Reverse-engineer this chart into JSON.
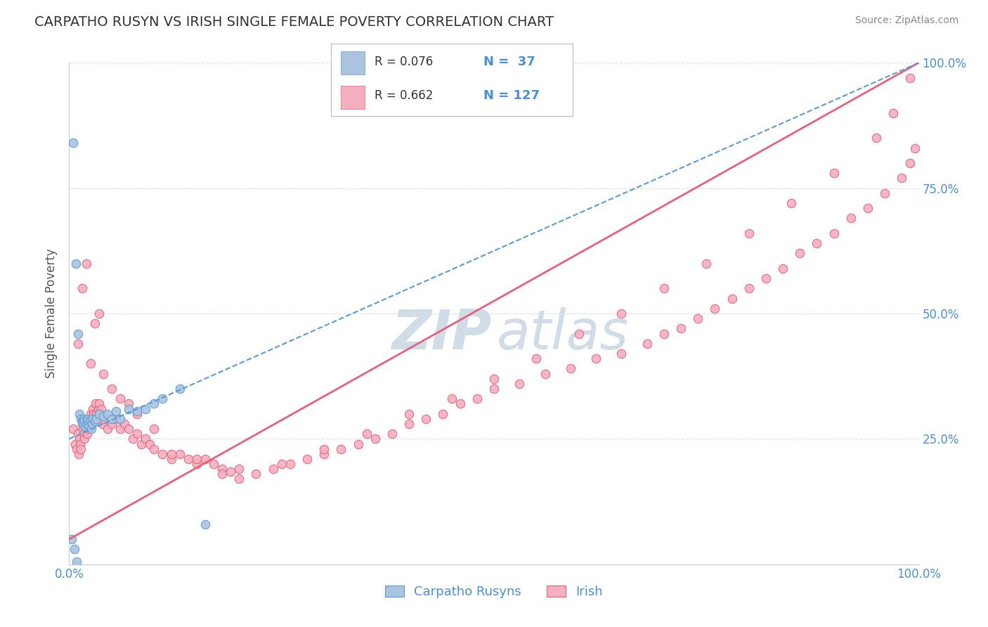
{
  "title": "CARPATHO RUSYN VS IRISH SINGLE FEMALE POVERTY CORRELATION CHART",
  "source": "Source: ZipAtlas.com",
  "ylabel": "Single Female Poverty",
  "carpatho_color": "#aac4e0",
  "carpatho_edge_color": "#5b9bd5",
  "irish_color": "#f4afc0",
  "irish_edge_color": "#e8607a",
  "carpatho_trend_color": "#5b9bd5",
  "irish_trend_color": "#e8607a",
  "watermark_color": "#d0dde8",
  "background_color": "#ffffff",
  "title_color": "#333333",
  "axis_tick_color": "#4a90d9",
  "ylabel_color": "#555555",
  "source_color": "#888888",
  "legend_r_color": "#333333",
  "legend_n_color": "#4a90d9",
  "grid_color": "#e0e0e0",
  "carpatho_r": "R = 0.076",
  "carpatho_n": "N =  37",
  "irish_r": "R = 0.662",
  "irish_n": "N = 127",
  "cr_x": [
    0.5,
    0.8,
    1.0,
    1.2,
    1.4,
    1.5,
    1.6,
    1.7,
    1.8,
    1.9,
    2.0,
    2.1,
    2.2,
    2.3,
    2.4,
    2.5,
    2.6,
    2.7,
    2.8,
    3.0,
    3.2,
    3.5,
    4.0,
    4.5,
    5.0,
    5.5,
    6.0,
    7.0,
    8.0,
    9.0,
    10.0,
    11.0,
    13.0,
    16.0,
    0.3,
    0.6,
    0.9
  ],
  "cr_y": [
    84.0,
    60.0,
    46.0,
    30.0,
    29.0,
    28.5,
    28.0,
    29.0,
    28.5,
    27.5,
    28.0,
    29.0,
    28.5,
    28.0,
    27.5,
    28.5,
    27.0,
    28.0,
    29.0,
    28.5,
    29.0,
    30.0,
    29.5,
    30.0,
    29.0,
    30.5,
    29.0,
    31.0,
    30.5,
    31.0,
    32.0,
    33.0,
    35.0,
    8.0,
    5.0,
    3.0,
    0.5
  ],
  "irish_x": [
    0.5,
    0.7,
    0.9,
    1.0,
    1.1,
    1.2,
    1.3,
    1.4,
    1.5,
    1.6,
    1.7,
    1.8,
    1.9,
    2.0,
    2.1,
    2.2,
    2.3,
    2.4,
    2.5,
    2.6,
    2.7,
    2.8,
    2.9,
    3.0,
    3.1,
    3.2,
    3.3,
    3.4,
    3.5,
    3.6,
    3.7,
    3.8,
    3.9,
    4.0,
    4.5,
    5.0,
    5.5,
    6.0,
    6.5,
    7.0,
    7.5,
    8.0,
    8.5,
    9.0,
    9.5,
    10.0,
    11.0,
    12.0,
    13.0,
    14.0,
    15.0,
    16.0,
    17.0,
    18.0,
    19.0,
    20.0,
    22.0,
    24.0,
    26.0,
    28.0,
    30.0,
    32.0,
    34.0,
    36.0,
    38.0,
    40.0,
    42.0,
    44.0,
    46.0,
    48.0,
    50.0,
    53.0,
    56.0,
    59.0,
    62.0,
    65.0,
    68.0,
    70.0,
    72.0,
    74.0,
    76.0,
    78.0,
    80.0,
    82.0,
    84.0,
    86.0,
    88.0,
    90.0,
    92.0,
    94.0,
    96.0,
    98.0,
    99.0,
    99.5,
    1.0,
    1.5,
    2.0,
    2.5,
    3.0,
    3.5,
    4.0,
    5.0,
    6.0,
    7.0,
    8.0,
    10.0,
    12.0,
    15.0,
    18.0,
    20.0,
    25.0,
    30.0,
    35.0,
    40.0,
    45.0,
    50.0,
    55.0,
    60.0,
    65.0,
    70.0,
    75.0,
    80.0,
    85.0,
    90.0,
    95.0,
    97.0,
    99.0
  ],
  "irish_y": [
    27.0,
    24.0,
    23.0,
    26.0,
    22.0,
    25.0,
    24.0,
    23.0,
    28.0,
    27.0,
    26.0,
    25.0,
    28.0,
    27.0,
    26.0,
    29.0,
    27.0,
    28.0,
    30.0,
    29.0,
    28.0,
    31.0,
    30.0,
    29.0,
    32.0,
    30.0,
    29.0,
    31.0,
    32.0,
    30.0,
    29.0,
    31.0,
    28.0,
    29.0,
    27.0,
    28.0,
    29.0,
    27.0,
    28.0,
    27.0,
    25.0,
    26.0,
    24.0,
    25.0,
    24.0,
    23.0,
    22.0,
    21.0,
    22.0,
    21.0,
    20.0,
    21.0,
    20.0,
    19.0,
    18.5,
    19.0,
    18.0,
    19.0,
    20.0,
    21.0,
    22.0,
    23.0,
    24.0,
    25.0,
    26.0,
    28.0,
    29.0,
    30.0,
    32.0,
    33.0,
    35.0,
    36.0,
    38.0,
    39.0,
    41.0,
    42.0,
    44.0,
    46.0,
    47.0,
    49.0,
    51.0,
    53.0,
    55.0,
    57.0,
    59.0,
    62.0,
    64.0,
    66.0,
    69.0,
    71.0,
    74.0,
    77.0,
    80.0,
    83.0,
    44.0,
    55.0,
    60.0,
    40.0,
    48.0,
    50.0,
    38.0,
    35.0,
    33.0,
    32.0,
    30.0,
    27.0,
    22.0,
    21.0,
    18.0,
    17.0,
    20.0,
    23.0,
    26.0,
    30.0,
    33.0,
    37.0,
    41.0,
    46.0,
    50.0,
    55.0,
    60.0,
    66.0,
    72.0,
    78.0,
    85.0,
    90.0,
    97.0
  ]
}
